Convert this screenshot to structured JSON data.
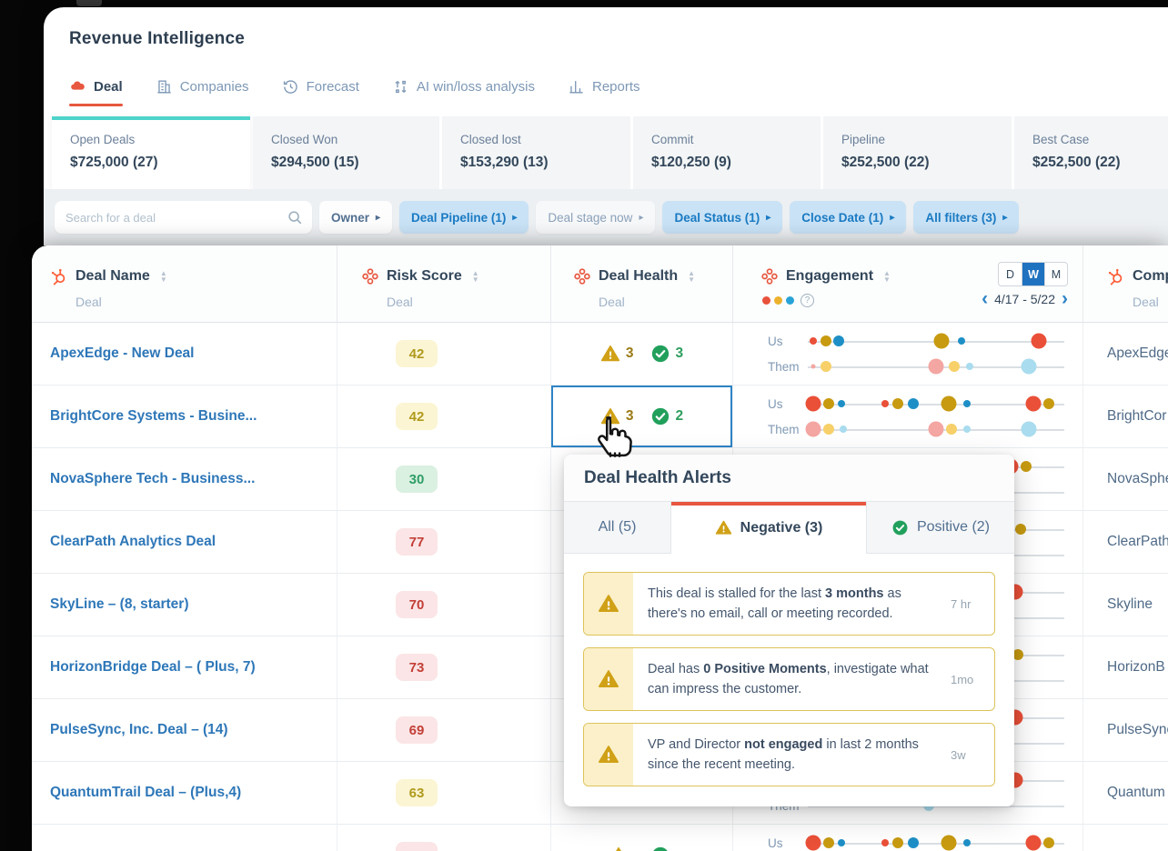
{
  "window": {
    "title": "Revenue Intelligence"
  },
  "nav_tabs": [
    {
      "label": "Deal",
      "icon": "deal-icon",
      "active": true
    },
    {
      "label": "Companies",
      "icon": "companies-icon",
      "active": false
    },
    {
      "label": "Forecast",
      "icon": "forecast-icon",
      "active": false
    },
    {
      "label": "AI win/loss analysis",
      "icon": "ai-winloss-icon",
      "active": false
    },
    {
      "label": "Reports",
      "icon": "reports-icon",
      "active": false
    }
  ],
  "summary_cards": [
    {
      "label": "Open Deals",
      "value": "$725,000 (27)",
      "active": true
    },
    {
      "label": "Closed Won",
      "value": "$294,500 (15)",
      "active": false
    },
    {
      "label": "Closed lost",
      "value": "$153,290 (13)",
      "active": false
    },
    {
      "label": "Commit",
      "value": "$120,250 (9)",
      "active": false
    },
    {
      "label": "Pipeline",
      "value": "$252,500 (22)",
      "active": false
    },
    {
      "label": "Best Case",
      "value": "$252,500 (22)",
      "active": false
    }
  ],
  "filters": {
    "search_placeholder": "Search for a deal",
    "buttons": [
      {
        "label": "Owner",
        "style": "plain"
      },
      {
        "label": "Deal Pipeline (1)",
        "style": "active"
      },
      {
        "label": "Deal stage now",
        "style": "muted"
      },
      {
        "label": "Deal Status (1)",
        "style": "active"
      },
      {
        "label": "Close Date (1)",
        "style": "active"
      },
      {
        "label": "All filters (3)",
        "style": "active"
      }
    ]
  },
  "table": {
    "columns": [
      {
        "label": "Deal Name",
        "sublabel": "Deal",
        "icon": "hubspot-sprocket"
      },
      {
        "label": "Risk Score",
        "sublabel": "Deal",
        "icon": "custom-object"
      },
      {
        "label": "Deal Health",
        "sublabel": "Deal",
        "icon": "custom-object"
      },
      {
        "label": "Engagement",
        "icon": "custom-object",
        "legend_dots": [
          "#e8513b",
          "#ecb22e",
          "#29a3d7"
        ],
        "help_icon": "question-icon"
      },
      {
        "label": "Comp",
        "sublabel": "Deal",
        "icon": "hubspot-sprocket"
      }
    ],
    "period_toggle": {
      "options": [
        "D",
        "W",
        "M"
      ],
      "selected": "W"
    },
    "date_range": {
      "label": "4/17 - 5/22"
    },
    "engagement_row_labels": {
      "us": "Us",
      "them": "Them"
    },
    "rows": [
      {
        "name": "ApexEdge - New Deal",
        "risk": "42",
        "risk_level": "medium",
        "health": {
          "negative": "3",
          "positive": "3"
        },
        "company": "ApexEdge",
        "engagement": {
          "us": [
            {
              "p": 2,
              "c": "red",
              "s": "s"
            },
            {
              "p": 7,
              "c": "gold",
              "s": "m"
            },
            {
              "p": 12,
              "c": "blue",
              "s": "m"
            },
            {
              "p": 52,
              "c": "gold",
              "s": "l"
            },
            {
              "p": 60,
              "c": "blue",
              "s": "s"
            },
            {
              "p": 90,
              "c": "red",
              "s": "l"
            }
          ],
          "them": [
            {
              "p": 2,
              "c": "pink",
              "s": "xs"
            },
            {
              "p": 7,
              "c": "yellow",
              "s": "m"
            },
            {
              "p": 50,
              "c": "pink",
              "s": "l"
            },
            {
              "p": 57,
              "c": "yellow",
              "s": "m"
            },
            {
              "p": 63,
              "c": "lightblue",
              "s": "s"
            },
            {
              "p": 86,
              "c": "lightblue",
              "s": "l"
            }
          ]
        }
      },
      {
        "name": "BrightCore Systems - Busine...",
        "risk": "42",
        "risk_level": "medium",
        "selected": true,
        "health": {
          "negative": "3",
          "positive": "2"
        },
        "company": "BrightCor",
        "engagement": {
          "us": [
            {
              "p": 2,
              "c": "red",
              "s": "l"
            },
            {
              "p": 8,
              "c": "gold",
              "s": "m"
            },
            {
              "p": 13,
              "c": "blue",
              "s": "s"
            },
            {
              "p": 30,
              "c": "red",
              "s": "s"
            },
            {
              "p": 35,
              "c": "gold",
              "s": "m"
            },
            {
              "p": 41,
              "c": "blue",
              "s": "m"
            },
            {
              "p": 55,
              "c": "gold",
              "s": "l"
            },
            {
              "p": 62,
              "c": "blue",
              "s": "s"
            },
            {
              "p": 88,
              "c": "red",
              "s": "l"
            },
            {
              "p": 94,
              "c": "gold",
              "s": "m"
            }
          ],
          "them": [
            {
              "p": 2,
              "c": "pink",
              "s": "l"
            },
            {
              "p": 8,
              "c": "yellow",
              "s": "m"
            },
            {
              "p": 14,
              "c": "lightblue",
              "s": "s"
            },
            {
              "p": 50,
              "c": "pink",
              "s": "l"
            },
            {
              "p": 56,
              "c": "yellow",
              "s": "m"
            },
            {
              "p": 62,
              "c": "lightblue",
              "s": "s"
            },
            {
              "p": 86,
              "c": "lightblue",
              "s": "l"
            }
          ]
        }
      },
      {
        "name": "NovaSphere Tech - Business...",
        "risk": "30",
        "risk_level": "low",
        "company": "NovaSphe",
        "engagement": {
          "us": [
            {
              "p": 79,
              "c": "red",
              "s": "l"
            },
            {
              "p": 85,
              "c": "gold",
              "s": "m"
            }
          ],
          "them": []
        }
      },
      {
        "name": "ClearPath Analytics Deal",
        "risk": "77",
        "risk_level": "high",
        "company": "ClearPath",
        "engagement": {
          "us": [
            {
              "p": 77,
              "c": "red",
              "s": "l"
            },
            {
              "p": 83,
              "c": "gold",
              "s": "m"
            }
          ],
          "them": []
        }
      },
      {
        "name": "SkyLine – (8, starter)",
        "risk": "70",
        "risk_level": "high",
        "company": "Skyline",
        "engagement": {
          "us": [
            {
              "p": 81,
              "c": "red",
              "s": "l"
            }
          ],
          "them": []
        }
      },
      {
        "name": "HorizonBridge Deal – ( Plus, 7)",
        "risk": "73",
        "risk_level": "high",
        "company": "HorizonB",
        "engagement": {
          "us": [
            {
              "p": 76,
              "c": "red",
              "s": "l"
            },
            {
              "p": 82,
              "c": "gold",
              "s": "m"
            }
          ],
          "them": []
        }
      },
      {
        "name": "PulseSync, Inc. Deal – (14)",
        "risk": "69",
        "risk_level": "high",
        "company": "PulseSync",
        "engagement": {
          "us": [
            {
              "p": 81,
              "c": "red",
              "s": "l"
            }
          ],
          "them": []
        }
      },
      {
        "name": "QuantumTrail Deal – (Plus,4)",
        "risk": "63",
        "risk_level": "medium",
        "company": "Quantum",
        "engagement": {
          "us": [
            {
              "p": 81,
              "c": "red",
              "s": "l"
            }
          ],
          "them": [
            {
              "p": 47,
              "c": "lightblue",
              "s": "m"
            }
          ]
        }
      },
      {
        "name": "",
        "risk": "",
        "risk_level": "high",
        "health": {
          "negative": "",
          "positive": ""
        },
        "company": "",
        "engagement": {
          "us": [
            {
              "p": 2,
              "c": "red",
              "s": "l"
            },
            {
              "p": 8,
              "c": "gold",
              "s": "m"
            },
            {
              "p": 13,
              "c": "blue",
              "s": "s"
            },
            {
              "p": 30,
              "c": "red",
              "s": "s"
            },
            {
              "p": 35,
              "c": "gold",
              "s": "m"
            },
            {
              "p": 41,
              "c": "blue",
              "s": "m"
            },
            {
              "p": 55,
              "c": "gold",
              "s": "l"
            },
            {
              "p": 62,
              "c": "blue",
              "s": "s"
            },
            {
              "p": 88,
              "c": "red",
              "s": "l"
            },
            {
              "p": 94,
              "c": "gold",
              "s": "m"
            }
          ],
          "them": []
        }
      }
    ]
  },
  "popup": {
    "title": "Deal Health Alerts",
    "tabs": [
      {
        "label": "All (5)",
        "active": false
      },
      {
        "label": "Negative (3)",
        "icon": "warning-icon",
        "active": true
      },
      {
        "label": "Positive (2)",
        "icon": "check-icon",
        "active": false
      }
    ],
    "alerts": [
      {
        "time": "7 hr",
        "segments": [
          {
            "text": "This deal is stalled for the last "
          },
          {
            "text": "3 months",
            "bold": true
          },
          {
            "text": " as there's no email, call or meeting recorded."
          }
        ]
      },
      {
        "time": "1mo",
        "segments": [
          {
            "text": "Deal has "
          },
          {
            "text": "0 Positive Moments",
            "bold": true
          },
          {
            "text": ", investigate what can impress the customer."
          }
        ]
      },
      {
        "time": "3w",
        "segments": [
          {
            "text": "VP and Director "
          },
          {
            "text": "not engaged",
            "bold": true
          },
          {
            "text": " in last 2 months since the recent meeting."
          }
        ]
      }
    ]
  },
  "colors": {
    "accent_red": "#e8573f",
    "hubspot_orange": "#ff5c35",
    "teal_active_card": "#4fd4cb",
    "chip_blue_bg": "#c9e2f6",
    "chip_blue_text": "#1a7ac2",
    "link_blue": "#2e77b8",
    "selected_cell_border": "#2e84c6",
    "toggle_selected_bg": "#1f72c0",
    "badge_yellow_bg": "#fcf5d3",
    "badge_yellow_text": "#b09a1d",
    "badge_green_bg": "#daf0e1",
    "badge_green_text": "#2f9e68",
    "badge_red_bg": "#fbe5e6",
    "badge_red_text": "#c33f38",
    "warning_amber": "#d0a117",
    "check_green": "#21a05c",
    "dots_us": {
      "red": "#ea5038",
      "gold": "#c79a10",
      "blue": "#1e8fc6"
    },
    "dots_them": {
      "pink": "#f4a6a2",
      "yellow": "#f7d069",
      "lightblue": "#a9dcee"
    }
  }
}
